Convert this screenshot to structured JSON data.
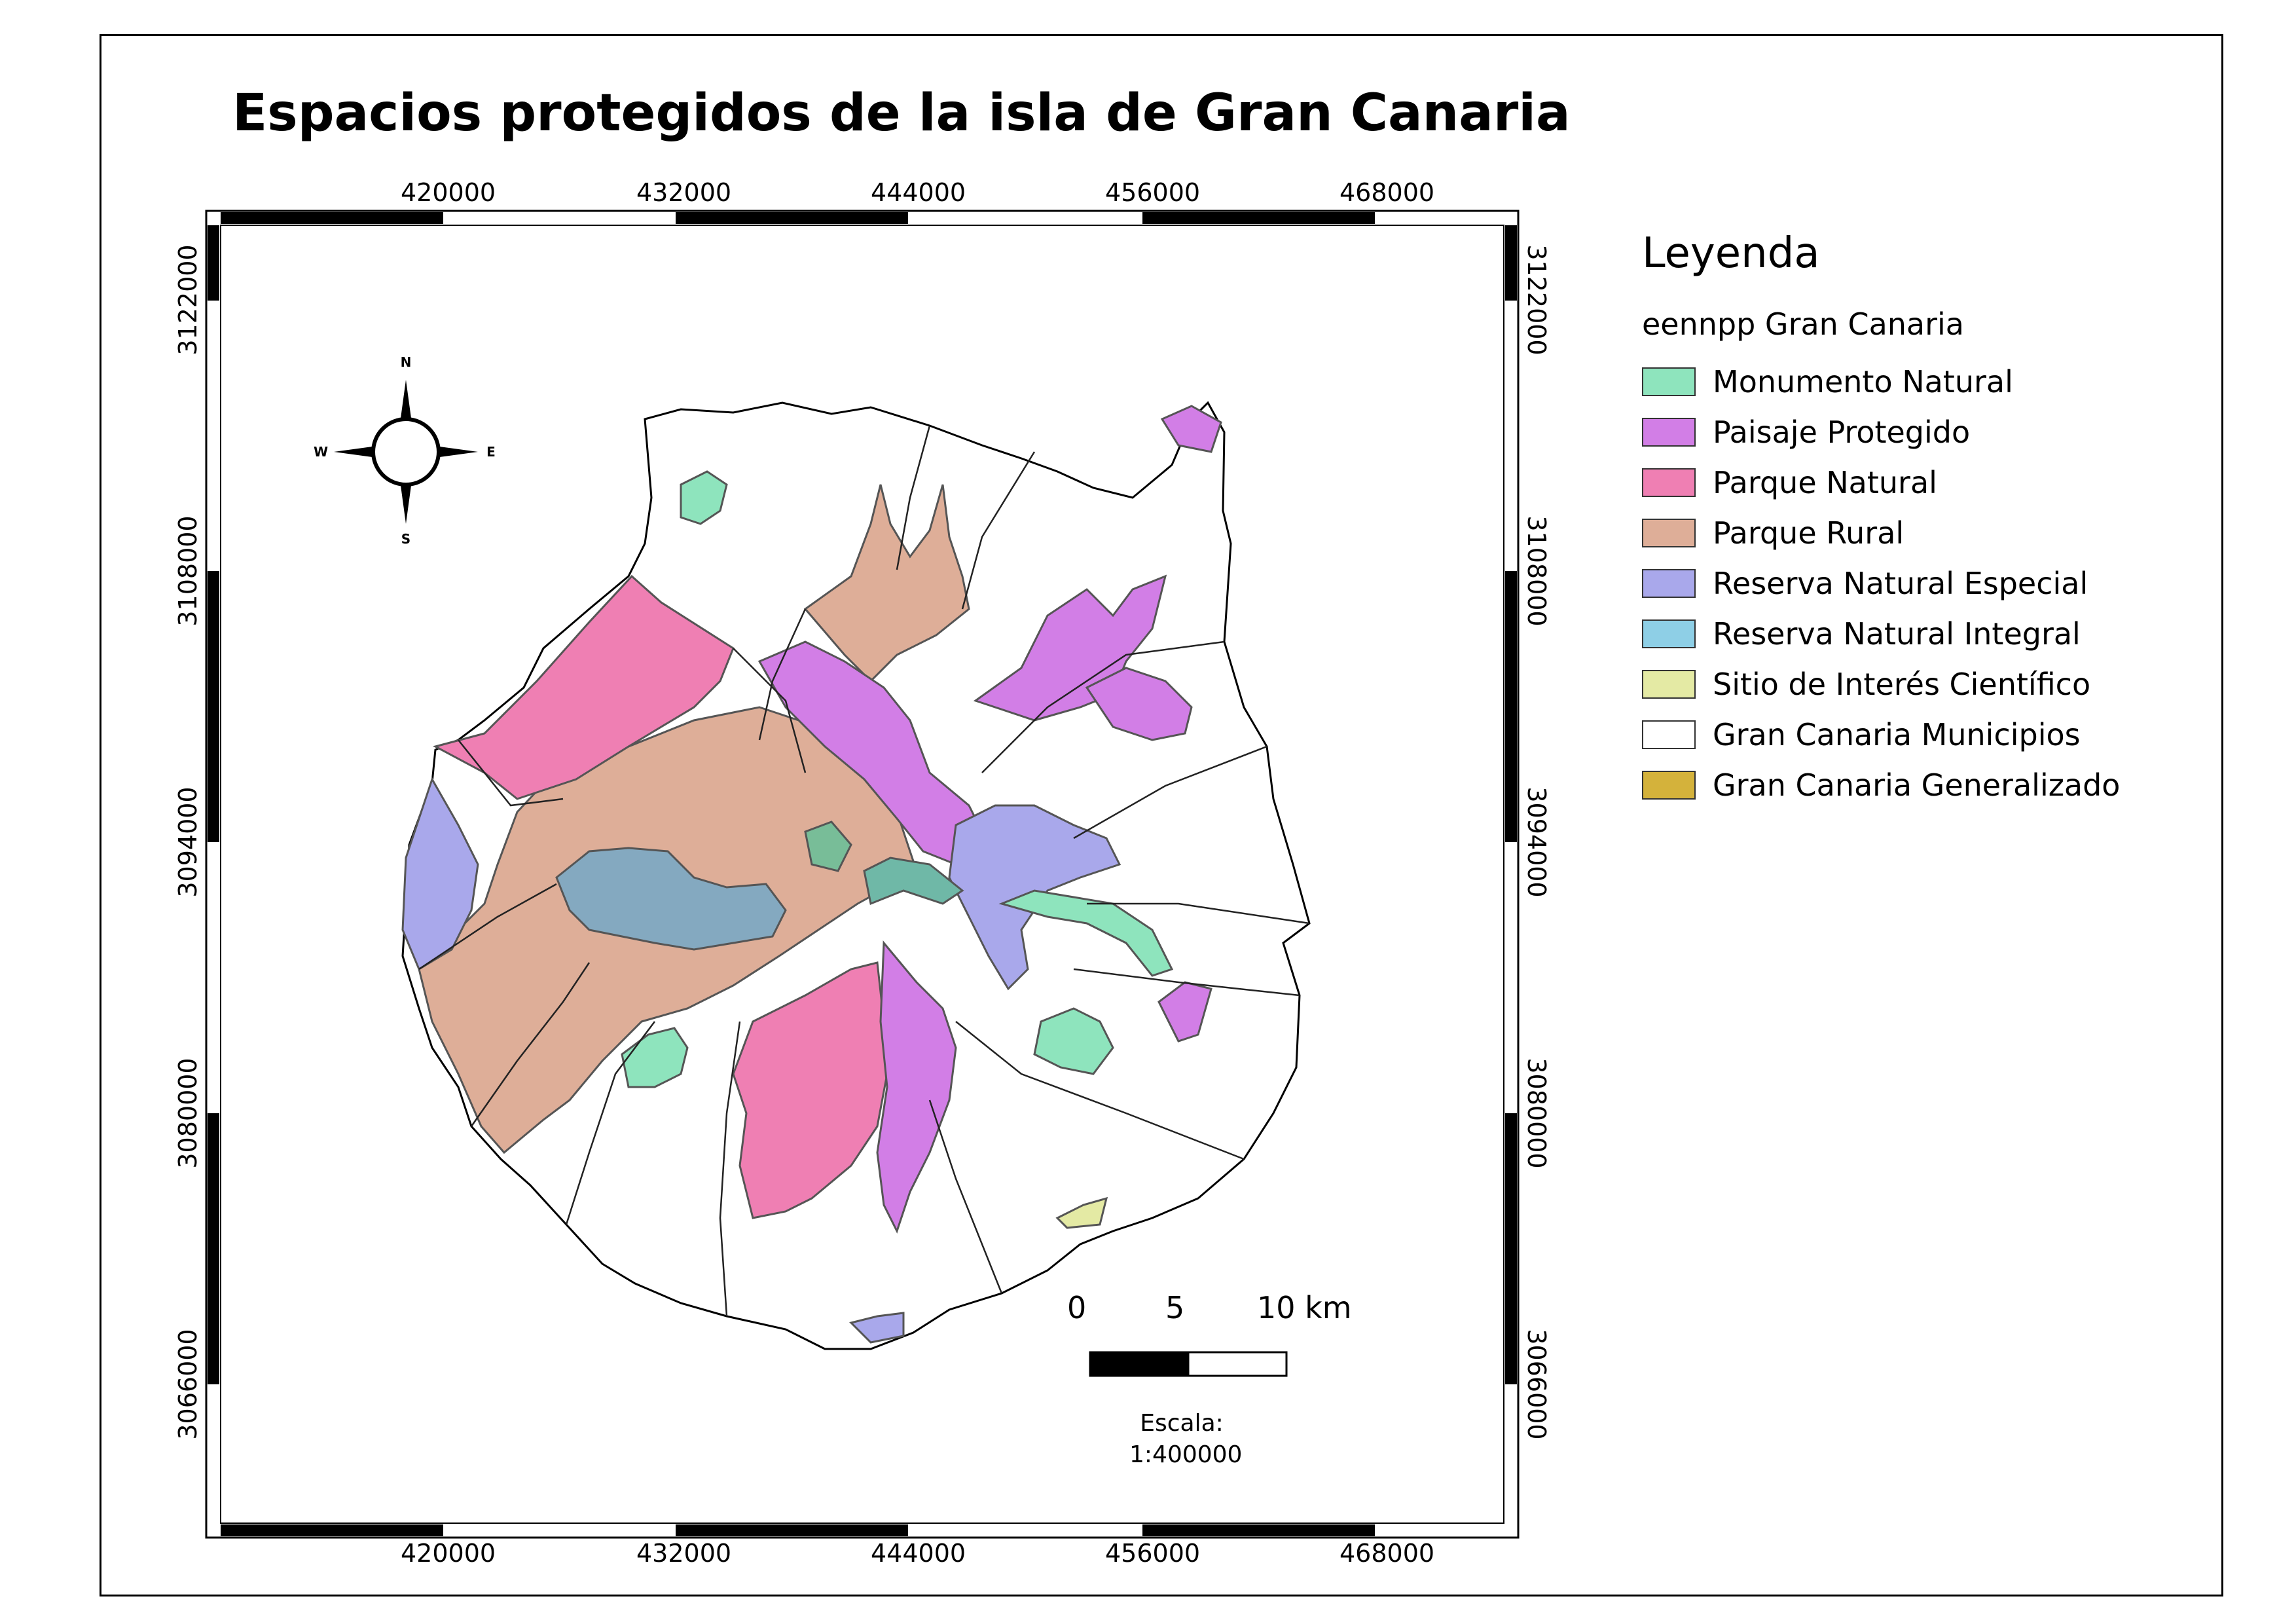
{
  "title": "Espacios protegidos de la isla de Gran Canaria",
  "grid": {
    "x_labels": [
      "420000",
      "432000",
      "444000",
      "456000",
      "468000"
    ],
    "y_labels": [
      "3122000",
      "3108000",
      "3094000",
      "3080000",
      "3066000"
    ]
  },
  "compass": {
    "north": "N",
    "south": "S",
    "east": "E",
    "west": "W"
  },
  "legend": {
    "title": "Leyenda",
    "group": "eennpp Gran Canaria",
    "items": [
      {
        "label": "Monumento Natural",
        "color": "#8ee4bd"
      },
      {
        "label": "Paisaje Protegido",
        "color": "#d27ee6"
      },
      {
        "label": "Parque Natural",
        "color": "#ef7fb3"
      },
      {
        "label": "Parque Rural",
        "color": "#deae98"
      },
      {
        "label": "Reserva Natural Especial",
        "color": "#a9a8eb"
      },
      {
        "label": "Reserva Natural Integral",
        "color": "#8ecfe6"
      },
      {
        "label": "Sitio de Interés Científico",
        "color": "#e4eaa4"
      },
      {
        "label": "Gran Canaria Municipios",
        "color": "#ffffff"
      },
      {
        "label": "Gran Canaria Generalizado",
        "color": "#d4b23b"
      }
    ]
  },
  "scalebar": {
    "ticks": [
      "0",
      "5",
      "10 km"
    ],
    "caption_label": "Escala:",
    "caption_value": "1:400000"
  }
}
